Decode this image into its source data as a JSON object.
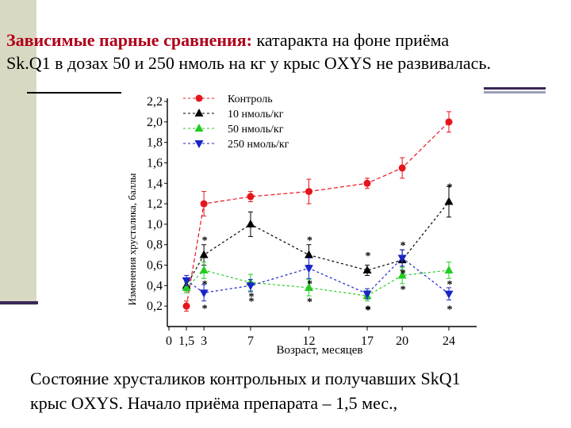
{
  "heading": {
    "accent": "Зависимые парные сравнения:",
    "line1_rest": " катаракта  на фоне приёма",
    "line2": "Sk.Q1 в дозах 50 и 250 нмоль на кг у крыс OXYS не развивалась."
  },
  "caption": {
    "line1": "Состояние хрусталиков контрольных и получавших SkQ1",
    "line2": "крыс OXYS. Начало приёма препарата – 1,5 мес.,"
  },
  "colors": {
    "control": "#e8141b",
    "dose10": "#000000",
    "dose50": "#22cc22",
    "dose250": "#1a24c8",
    "heading_accent": "#b0001a"
  },
  "chart_data": {
    "type": "line",
    "x": [
      1.5,
      3,
      7,
      12,
      17,
      20,
      24
    ],
    "x_tick_labels": [
      "0",
      "1,5",
      "3",
      "7",
      "12",
      "17",
      "20",
      "24"
    ],
    "xlabel": "Возраст, месяцев",
    "ylabel": "Изменения хрусталика, баллы",
    "ylim": [
      0,
      2.2
    ],
    "y_ticks": [
      "2,2",
      "2,0",
      "1,8",
      "1,6",
      "1,4",
      "1,2",
      "1,0",
      "0,8",
      "0,6",
      "0,4",
      "0,2"
    ],
    "legend_position": "top-left",
    "series": [
      {
        "name": "Контроль",
        "key": "control",
        "marker": "circle",
        "x": [
          1.5,
          3,
          7,
          12,
          17,
          20,
          24
        ],
        "y": [
          0.2,
          1.2,
          1.27,
          1.32,
          1.4,
          1.55,
          2.0
        ],
        "err": [
          0.05,
          0.12,
          0.05,
          0.12,
          0.05,
          0.1,
          0.1
        ],
        "significance": []
      },
      {
        "name": "10 нмоль/кг",
        "key": "dose10",
        "marker": "triangle-up",
        "x": [
          1.5,
          3,
          7,
          12,
          17,
          20,
          24
        ],
        "y": [
          0.4,
          0.7,
          1.0,
          0.7,
          0.55,
          0.65,
          1.22
        ],
        "err": [
          0.05,
          0.1,
          0.12,
          0.1,
          0.05,
          0.1,
          0.15
        ],
        "significance": [
          "",
          "*",
          "",
          "*",
          "*",
          "*",
          "*"
        ]
      },
      {
        "name": "50 нмоль/кг",
        "key": "dose50",
        "marker": "triangle-up",
        "x": [
          1.5,
          3,
          7,
          12,
          17,
          20,
          24
        ],
        "y": [
          0.38,
          0.55,
          0.43,
          0.38,
          0.3,
          0.5,
          0.55
        ],
        "err": [
          0.05,
          0.08,
          0.08,
          0.08,
          0.05,
          0.08,
          0.08
        ],
        "significance": [
          "",
          "*",
          "*",
          "*",
          "*",
          "*",
          "*"
        ]
      },
      {
        "name": "250 нмоль/кг",
        "key": "dose250",
        "marker": "triangle-down",
        "x": [
          1.5,
          3,
          7,
          12,
          17,
          20,
          24
        ],
        "y": [
          0.45,
          0.33,
          0.4,
          0.57,
          0.32,
          0.67,
          0.32
        ],
        "err": [
          0.05,
          0.08,
          0.06,
          0.1,
          0.05,
          0.08,
          0.06
        ],
        "significance": [
          "",
          "*",
          "*",
          "*",
          "*",
          "*",
          "*"
        ]
      }
    ]
  }
}
